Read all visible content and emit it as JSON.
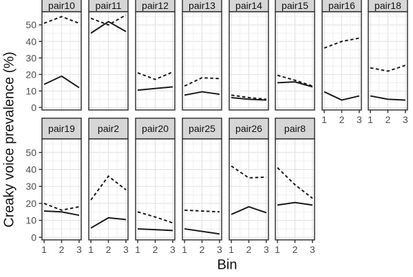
{
  "chart_data": {
    "type": "line",
    "title": "",
    "xlabel": "Bin",
    "ylabel": "Creaky voice prevalence (%)",
    "x": [
      1,
      2,
      3
    ],
    "xtick_labels": [
      "1",
      "2",
      "3"
    ],
    "yticks": [
      0,
      10,
      20,
      30,
      40,
      50
    ],
    "ylim": [
      -1.5,
      58
    ],
    "xlim": [
      0.88,
      3.12
    ],
    "grid": "on",
    "legend_position": "none",
    "series_styles": [
      {
        "name": "dashed",
        "dash": "4.5 3.5"
      },
      {
        "name": "solid",
        "dash": ""
      }
    ],
    "facets": [
      {
        "label": "pair10",
        "row": 0,
        "col": 0,
        "dashed": [
          51,
          55,
          51
        ],
        "solid": [
          14,
          19,
          12
        ]
      },
      {
        "label": "pair11",
        "row": 0,
        "col": 1,
        "dashed": [
          54,
          50,
          56
        ],
        "solid": [
          45,
          52,
          46
        ]
      },
      {
        "label": "pair12",
        "row": 0,
        "col": 2,
        "dashed": [
          21,
          17,
          21.5
        ],
        "solid": [
          10.5,
          11.5,
          12.5
        ]
      },
      {
        "label": "pair13",
        "row": 0,
        "col": 3,
        "dashed": [
          13,
          18,
          17.5
        ],
        "solid": [
          7.5,
          9.5,
          8
        ]
      },
      {
        "label": "pair14",
        "row": 0,
        "col": 4,
        "dashed": [
          7.5,
          6,
          5
        ],
        "solid": [
          6,
          5,
          4.5
        ]
      },
      {
        "label": "pair15",
        "row": 0,
        "col": 5,
        "dashed": [
          19.5,
          16.5,
          13
        ],
        "solid": [
          15,
          15.5,
          12.5
        ]
      },
      {
        "label": "pair16",
        "row": 0,
        "col": 6,
        "dashed": [
          36,
          40,
          42
        ],
        "solid": [
          9.5,
          4.5,
          7
        ]
      },
      {
        "label": "pair18",
        "row": 0,
        "col": 7,
        "dashed": [
          24,
          22,
          25.5
        ],
        "solid": [
          7,
          5,
          4.5
        ]
      },
      {
        "label": "pair19",
        "row": 1,
        "col": 0,
        "dashed": [
          20,
          16,
          18
        ],
        "solid": [
          15.5,
          15,
          13
        ]
      },
      {
        "label": "pair2",
        "row": 1,
        "col": 1,
        "dashed": [
          22,
          36,
          28
        ],
        "solid": [
          5.5,
          11.5,
          10.5
        ]
      },
      {
        "label": "pair20",
        "row": 1,
        "col": 2,
        "dashed": [
          15,
          12,
          8.5
        ],
        "solid": [
          5,
          4.5,
          4
        ]
      },
      {
        "label": "pair25",
        "row": 1,
        "col": 3,
        "dashed": [
          16,
          15.5,
          15
        ],
        "solid": [
          5,
          3.5,
          2
        ]
      },
      {
        "label": "pair26",
        "row": 1,
        "col": 4,
        "dashed": [
          42,
          35,
          35.5
        ],
        "solid": [
          13.5,
          18,
          14.5
        ]
      },
      {
        "label": "pair8",
        "row": 1,
        "col": 5,
        "dashed": [
          41,
          31,
          23
        ],
        "solid": [
          19,
          20.5,
          19
        ]
      }
    ]
  },
  "colors": {
    "strip_fill": "#d6d6d6",
    "panel_border": "#333333",
    "grid_major": "#e0e0e0",
    "grid_minor": "#efefef",
    "line": "#1a1a1a",
    "tick_text": "#4d4d4d",
    "title_text": "#111111"
  }
}
